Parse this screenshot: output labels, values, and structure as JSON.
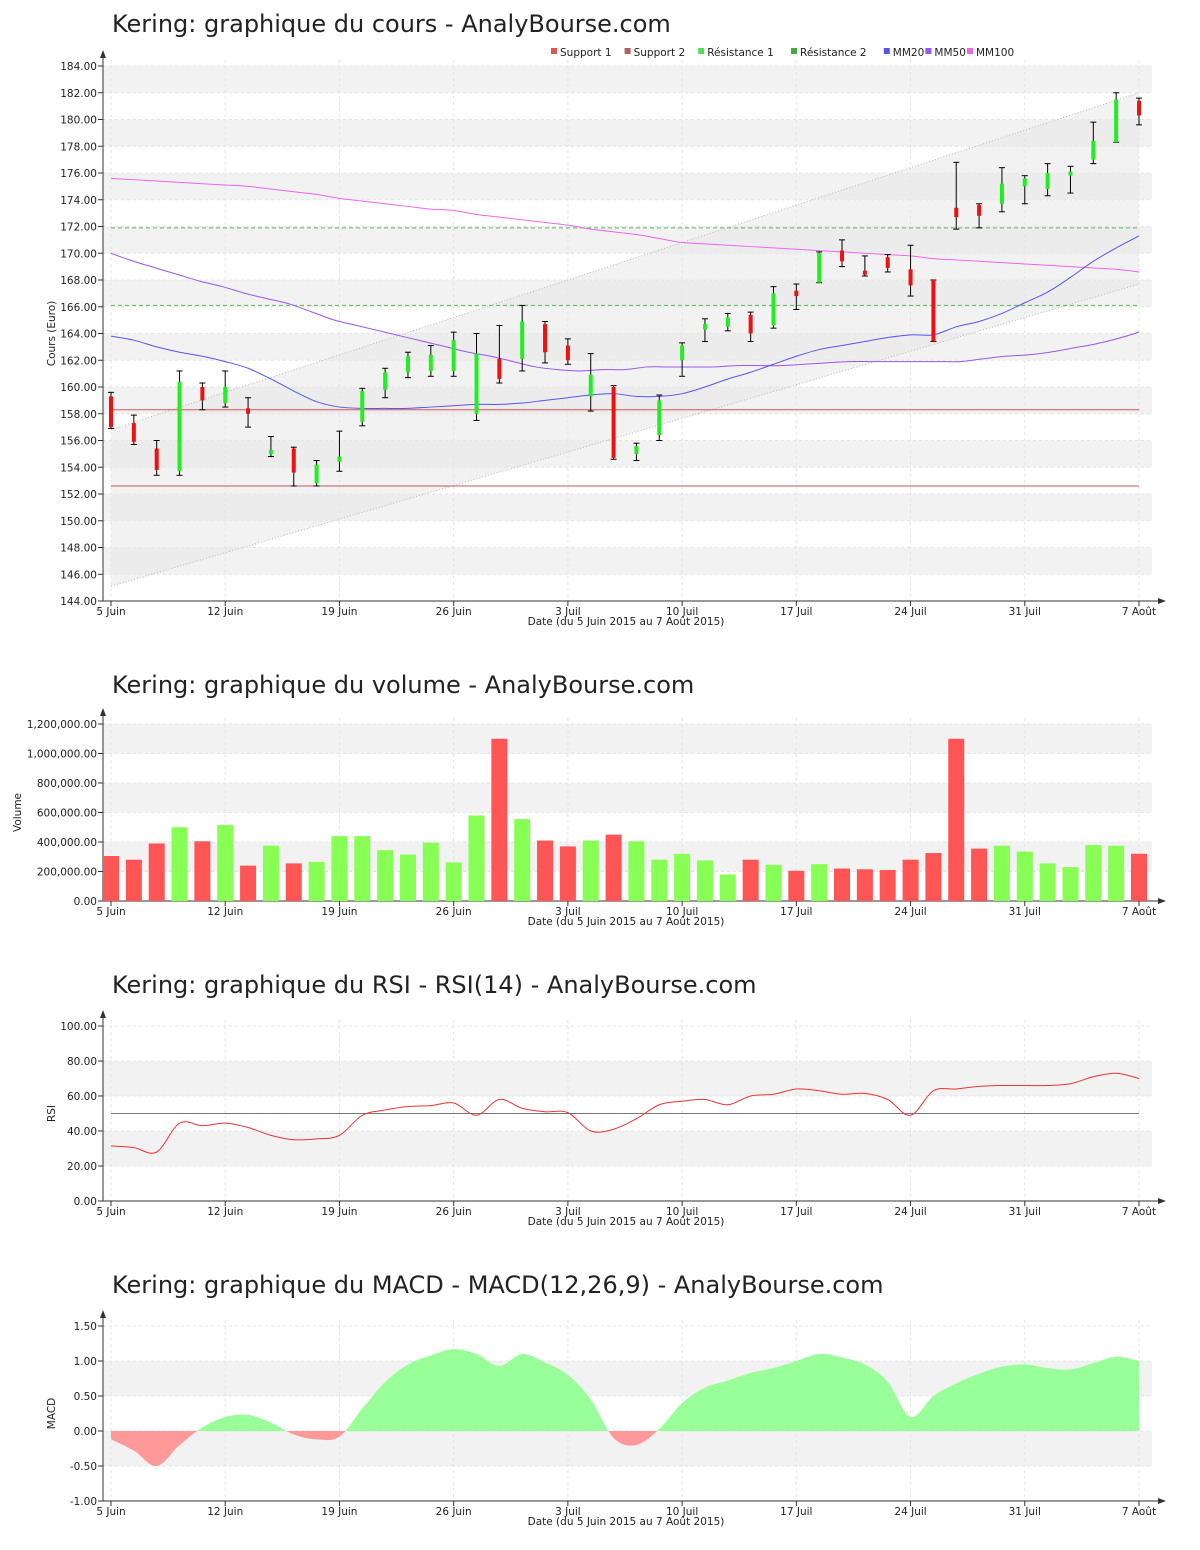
{
  "chart_data": [
    {
      "type": "candlestick",
      "title": "Kering: graphique du cours - AnalyBourse.com",
      "xlabel": "Date (du 5 Juin 2015 au 7 Août 2015)",
      "ylabel": "Cours (Euro)",
      "ylim": [
        144,
        184
      ],
      "yticks": [
        "144.00",
        "146.00",
        "148.00",
        "150.00",
        "152.00",
        "154.00",
        "156.00",
        "158.00",
        "160.00",
        "162.00",
        "164.00",
        "166.00",
        "168.00",
        "170.00",
        "172.00",
        "174.00",
        "176.00",
        "178.00",
        "180.00",
        "182.00",
        "184.00"
      ],
      "xticks": [
        {
          "label": "5 Juin",
          "index": 0
        },
        {
          "label": "12 Juin",
          "index": 5
        },
        {
          "label": "19 Juin",
          "index": 10
        },
        {
          "label": "26 Juin",
          "index": 15
        },
        {
          "label": "3 Juil",
          "index": 20
        },
        {
          "label": "10 Juil",
          "index": 25
        },
        {
          "label": "17 Juil",
          "index": 30
        },
        {
          "label": "24 Juil",
          "index": 35
        },
        {
          "label": "31 Juil",
          "index": 40
        },
        {
          "label": "7 Août",
          "index": 45
        }
      ],
      "legend": [
        {
          "name": "Support 1",
          "color": "#e05555"
        },
        {
          "name": "Support 2",
          "color": "#b06060"
        },
        {
          "name": "Résistance 1",
          "color": "#55dd55"
        },
        {
          "name": "Résistance 2",
          "color": "#44aa44"
        },
        {
          "name": "MM20",
          "color": "#5555ee"
        },
        {
          "name": "MM50",
          "color": "#9955ee"
        },
        {
          "name": "MM100",
          "color": "#ee66ee"
        }
      ],
      "support1": 158.3,
      "support2": 152.6,
      "resistance1": 166.1,
      "resistance2": 171.9,
      "channel_lower": [
        145.1,
        167.7
      ],
      "channel_upper": [
        156.8,
        182.0
      ],
      "candles": [
        {
          "o": 159.3,
          "h": 159.6,
          "l": 156.9,
          "c": 157.0
        },
        {
          "o": 157.3,
          "h": 157.9,
          "l": 155.7,
          "c": 155.9
        },
        {
          "o": 155.4,
          "h": 156.0,
          "l": 153.4,
          "c": 153.8
        },
        {
          "o": 153.7,
          "h": 161.2,
          "l": 153.4,
          "c": 160.4
        },
        {
          "o": 160.0,
          "h": 160.3,
          "l": 158.3,
          "c": 159.0
        },
        {
          "o": 158.8,
          "h": 161.2,
          "l": 158.5,
          "c": 160.0
        },
        {
          "o": 158.4,
          "h": 159.2,
          "l": 157.0,
          "c": 158.0
        },
        {
          "o": 155.0,
          "h": 156.3,
          "l": 154.8,
          "c": 155.3
        },
        {
          "o": 155.4,
          "h": 155.5,
          "l": 152.6,
          "c": 153.6
        },
        {
          "o": 152.8,
          "h": 154.5,
          "l": 152.6,
          "c": 154.2
        },
        {
          "o": 154.4,
          "h": 156.7,
          "l": 153.7,
          "c": 154.8
        },
        {
          "o": 157.4,
          "h": 159.9,
          "l": 157.1,
          "c": 159.7
        },
        {
          "o": 159.8,
          "h": 161.4,
          "l": 159.2,
          "c": 161.1
        },
        {
          "o": 161.1,
          "h": 162.6,
          "l": 160.7,
          "c": 162.3
        },
        {
          "o": 161.2,
          "h": 163.1,
          "l": 160.8,
          "c": 162.4
        },
        {
          "o": 161.2,
          "h": 164.1,
          "l": 160.8,
          "c": 163.5
        },
        {
          "o": 158.0,
          "h": 164.0,
          "l": 157.5,
          "c": 162.5
        },
        {
          "o": 162.1,
          "h": 164.6,
          "l": 160.3,
          "c": 160.6
        },
        {
          "o": 162.1,
          "h": 166.1,
          "l": 161.2,
          "c": 164.9
        },
        {
          "o": 164.7,
          "h": 164.9,
          "l": 161.8,
          "c": 162.6
        },
        {
          "o": 163.1,
          "h": 163.6,
          "l": 161.7,
          "c": 162.0
        },
        {
          "o": 159.3,
          "h": 162.5,
          "l": 158.2,
          "c": 160.9
        },
        {
          "o": 160.0,
          "h": 160.1,
          "l": 154.6,
          "c": 154.7
        },
        {
          "o": 155.0,
          "h": 155.8,
          "l": 154.5,
          "c": 155.6
        },
        {
          "o": 156.4,
          "h": 159.4,
          "l": 156.0,
          "c": 159.0
        },
        {
          "o": 162.0,
          "h": 163.3,
          "l": 160.8,
          "c": 163.1
        },
        {
          "o": 164.3,
          "h": 165.1,
          "l": 163.4,
          "c": 164.7
        },
        {
          "o": 164.5,
          "h": 165.5,
          "l": 164.2,
          "c": 165.2
        },
        {
          "o": 165.4,
          "h": 165.6,
          "l": 163.4,
          "c": 164.0
        },
        {
          "o": 164.6,
          "h": 167.5,
          "l": 164.4,
          "c": 167.0
        },
        {
          "o": 167.2,
          "h": 167.7,
          "l": 165.8,
          "c": 166.8
        },
        {
          "o": 167.8,
          "h": 170.1,
          "l": 167.8,
          "c": 170.0
        },
        {
          "o": 170.2,
          "h": 171.0,
          "l": 169.0,
          "c": 169.4
        },
        {
          "o": 168.7,
          "h": 169.8,
          "l": 168.3,
          "c": 168.4
        },
        {
          "o": 169.7,
          "h": 169.9,
          "l": 168.6,
          "c": 168.9
        },
        {
          "o": 168.8,
          "h": 170.6,
          "l": 166.8,
          "c": 167.6
        },
        {
          "o": 168.0,
          "h": 168.0,
          "l": 163.4,
          "c": 163.4
        },
        {
          "o": 173.4,
          "h": 176.8,
          "l": 171.8,
          "c": 172.7
        },
        {
          "o": 173.6,
          "h": 173.7,
          "l": 171.9,
          "c": 172.8
        },
        {
          "o": 173.7,
          "h": 176.4,
          "l": 173.1,
          "c": 175.2
        },
        {
          "o": 175.0,
          "h": 175.8,
          "l": 173.7,
          "c": 175.6
        },
        {
          "o": 174.8,
          "h": 176.7,
          "l": 174.3,
          "c": 176.0
        },
        {
          "o": 175.8,
          "h": 176.5,
          "l": 174.5,
          "c": 176.1
        },
        {
          "o": 177.0,
          "h": 179.8,
          "l": 176.7,
          "c": 178.4
        },
        {
          "o": 178.3,
          "h": 182.0,
          "l": 178.3,
          "c": 181.5
        },
        {
          "o": 181.4,
          "h": 181.6,
          "l": 179.6,
          "c": 180.3
        }
      ],
      "mm20": [
        163.8,
        163.5,
        163.0,
        162.6,
        162.3,
        161.9,
        161.4,
        160.6,
        159.7,
        158.9,
        158.5,
        158.4,
        158.4,
        158.4,
        158.5,
        158.6,
        158.7,
        158.7,
        158.8,
        159.0,
        159.2,
        159.4,
        159.5,
        159.3,
        159.3,
        159.5,
        160.0,
        160.6,
        161.1,
        161.7,
        162.3,
        162.8,
        163.1,
        163.4,
        163.7,
        163.9,
        163.9,
        164.5,
        164.9,
        165.5,
        166.3,
        167.1,
        168.2,
        169.4,
        170.4,
        171.3
      ],
      "mm50": [
        170.0,
        169.4,
        168.9,
        168.4,
        167.9,
        167.5,
        167.0,
        166.6,
        166.2,
        165.6,
        165.0,
        164.6,
        164.2,
        163.8,
        163.4,
        163.0,
        162.6,
        162.3,
        161.9,
        161.5,
        161.3,
        161.2,
        161.3,
        161.3,
        161.5,
        161.5,
        161.5,
        161.5,
        161.6,
        161.6,
        161.6,
        161.7,
        161.8,
        161.9,
        161.9,
        161.9,
        161.9,
        161.9,
        161.9,
        162.1,
        162.3,
        162.4,
        162.6,
        162.9,
        163.2,
        163.6,
        164.1
      ],
      "mm100": [
        175.6,
        175.5,
        175.4,
        175.3,
        175.2,
        175.1,
        175.0,
        174.8,
        174.6,
        174.4,
        174.1,
        173.9,
        173.7,
        173.5,
        173.3,
        173.2,
        172.9,
        172.7,
        172.5,
        172.3,
        172.1,
        171.8,
        171.6,
        171.4,
        171.1,
        170.8,
        170.7,
        170.6,
        170.5,
        170.4,
        170.3,
        170.2,
        170.1,
        170.0,
        169.9,
        169.8,
        169.6,
        169.5,
        169.4,
        169.3,
        169.2,
        169.1,
        169.0,
        168.9,
        168.8,
        168.6
      ]
    },
    {
      "type": "bar",
      "title": "Kering: graphique du volume - AnalyBourse.com",
      "xlabel": "Date (du 5 Juin 2015 au 7 Août 2015)",
      "ylabel": "Volume",
      "ylim": [
        0,
        1200000
      ],
      "yticks": [
        "0.00",
        "200,000.00",
        "400,000.00",
        "600,000.00",
        "800,000.00",
        "1,000,000.00",
        "1,200,000.00"
      ],
      "xticks": [
        {
          "label": "5 Juin",
          "index": 0
        },
        {
          "label": "12 Juin",
          "index": 5
        },
        {
          "label": "19 Juin",
          "index": 10
        },
        {
          "label": "26 Juin",
          "index": 15
        },
        {
          "label": "3 Juil",
          "index": 20
        },
        {
          "label": "10 Juil",
          "index": 25
        },
        {
          "label": "17 Juil",
          "index": 30
        },
        {
          "label": "24 Juil",
          "index": 35
        },
        {
          "label": "31 Juil",
          "index": 40
        },
        {
          "label": "7 Août",
          "index": 45
        }
      ],
      "colors": {
        "up": "#88ff55",
        "down": "#ff5555"
      },
      "values": [
        305000,
        280000,
        390000,
        500000,
        405000,
        515000,
        240000,
        375000,
        255000,
        265000,
        440000,
        440000,
        345000,
        315000,
        395000,
        262000,
        580000,
        1100000,
        555000,
        410000,
        370000,
        410000,
        450000,
        405000,
        280000,
        320000,
        275000,
        180000,
        280000,
        245000,
        205000,
        250000,
        220000,
        215000,
        210000,
        280000,
        325000,
        1100000,
        355000,
        375000,
        335000,
        255000,
        230000,
        380000,
        375000,
        320000
      ],
      "directions": [
        "down",
        "down",
        "down",
        "up",
        "down",
        "up",
        "down",
        "up",
        "down",
        "up",
        "up",
        "up",
        "up",
        "up",
        "up",
        "up",
        "up",
        "down",
        "up",
        "down",
        "down",
        "up",
        "down",
        "up",
        "up",
        "up",
        "up",
        "up",
        "down",
        "up",
        "down",
        "up",
        "down",
        "down",
        "down",
        "down",
        "down",
        "down",
        "down",
        "up",
        "up",
        "up",
        "up",
        "up",
        "up",
        "down"
      ]
    },
    {
      "type": "line",
      "title": "Kering: graphique du RSI - RSI(14) - AnalyBourse.com",
      "xlabel": "Date (du 5 Juin 2015 au 7 Août 2015)",
      "ylabel": "RSI",
      "ylim": [
        0,
        100
      ],
      "yticks": [
        "0.00",
        "20.00",
        "40.00",
        "60.00",
        "80.00",
        "100.00"
      ],
      "xticks": [
        {
          "label": "5 Juin",
          "index": 0
        },
        {
          "label": "12 Juin",
          "index": 5
        },
        {
          "label": "19 Juin",
          "index": 10
        },
        {
          "label": "26 Juin",
          "index": 15
        },
        {
          "label": "3 Juil",
          "index": 20
        },
        {
          "label": "10 Juil",
          "index": 25
        },
        {
          "label": "17 Juil",
          "index": 30
        },
        {
          "label": "24 Juil",
          "index": 35
        },
        {
          "label": "31 Juil",
          "index": 40
        },
        {
          "label": "7 Août",
          "index": 45
        }
      ],
      "reference_line": 50,
      "values": [
        31.5,
        30.5,
        28,
        44.5,
        43,
        44.5,
        42,
        37.5,
        35,
        35.5,
        37.5,
        49,
        52,
        54,
        54.5,
        56,
        49,
        58,
        53,
        51,
        50.5,
        40,
        41,
        47,
        55,
        57,
        58,
        55,
        60,
        61,
        64,
        63,
        61,
        61.5,
        58,
        49,
        63,
        64,
        65.5,
        66,
        66,
        66,
        67,
        71,
        73,
        70
      ]
    },
    {
      "type": "area",
      "title": "Kering: graphique du MACD - MACD(12,26,9) - AnalyBourse.com",
      "xlabel": "Date (du 5 Juin 2015 au 7 Août 2015)",
      "ylabel": "MACD",
      "ylim": [
        -1.0,
        1.5
      ],
      "yticks": [
        "-1.00",
        "-0.50",
        "0.00",
        "0.50",
        "1.00",
        "1.50"
      ],
      "xticks": [
        {
          "label": "5 Juin",
          "index": 0
        },
        {
          "label": "12 Juin",
          "index": 5
        },
        {
          "label": "19 Juin",
          "index": 10
        },
        {
          "label": "26 Juin",
          "index": 15
        },
        {
          "label": "3 Juil",
          "index": 20
        },
        {
          "label": "10 Juil",
          "index": 25
        },
        {
          "label": "17 Juil",
          "index": 30
        },
        {
          "label": "24 Juil",
          "index": 35
        },
        {
          "label": "31 Juil",
          "index": 40
        },
        {
          "label": "7 Août",
          "index": 45
        }
      ],
      "colors": {
        "positive": "#99ff99",
        "negative": "#ff9999"
      },
      "values": [
        -0.12,
        -0.28,
        -0.5,
        -0.2,
        0.05,
        0.2,
        0.23,
        0.12,
        -0.05,
        -0.12,
        -0.08,
        0.32,
        0.7,
        0.95,
        1.08,
        1.17,
        1.1,
        0.93,
        1.1,
        0.98,
        0.8,
        0.45,
        -0.1,
        -0.2,
        0.03,
        0.4,
        0.62,
        0.72,
        0.83,
        0.9,
        1.0,
        1.1,
        1.05,
        0.95,
        0.7,
        0.2,
        0.5,
        0.68,
        0.82,
        0.92,
        0.95,
        0.9,
        0.88,
        0.97,
        1.06,
        1.0
      ]
    }
  ]
}
